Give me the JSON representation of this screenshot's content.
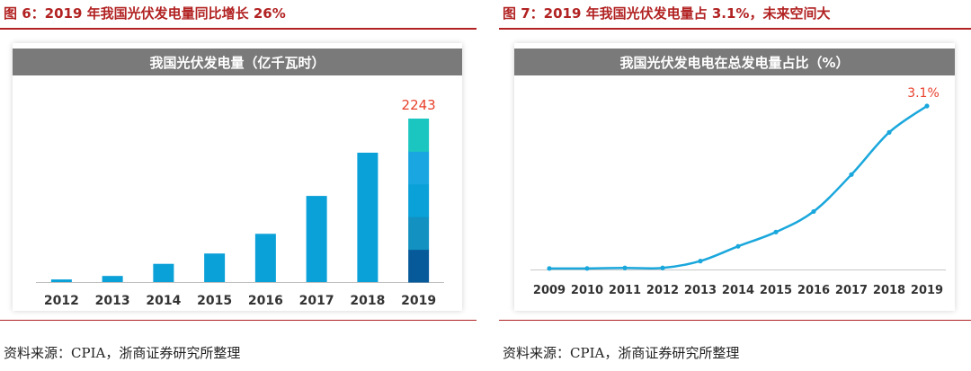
{
  "colors": {
    "title_red": "#b22222",
    "bar_blue": "#0aa0d8",
    "line_blue": "#1aa7dc",
    "header_gray": "#7a7a7a",
    "label_red": "#e8412c",
    "segment_colors": [
      "#075a9a",
      "#1391c1",
      "#0aa0d8",
      "#1aa6e0",
      "#1cc6c0"
    ]
  },
  "left": {
    "figure_title": "图 6：2019 年我国光伏发电量同比增长 26%",
    "source": "资料来源：CPIA，浙商证券研究所整理"
  },
  "right": {
    "figure_title": "图 7：2019 年我国光伏发电量占 3.1%，未来空间大",
    "source": "资料来源：CPIA，浙商证券研究所整理"
  },
  "chart_data": [
    {
      "type": "bar",
      "title": "我国光伏发电量（亿千瓦时）",
      "categories": [
        "2012",
        "2013",
        "2014",
        "2015",
        "2016",
        "2017",
        "2018",
        "2019"
      ],
      "values": [
        36,
        84,
        250,
        392,
        662,
        1182,
        1775,
        2243
      ],
      "data_labels": [
        "",
        "",
        "",
        "",
        "",
        "",
        "",
        "2243"
      ],
      "ylim": [
        0,
        2243
      ],
      "xlabel": "",
      "ylabel": "",
      "grid": false
    },
    {
      "type": "line",
      "title": "我国光伏发电电在总发电量占比（%）",
      "categories": [
        "2009",
        "2010",
        "2011",
        "2012",
        "2013",
        "2014",
        "2015",
        "2016",
        "2017",
        "2018",
        "2019"
      ],
      "values": [
        0.02,
        0.02,
        0.03,
        0.03,
        0.16,
        0.44,
        0.71,
        1.1,
        1.8,
        2.6,
        3.1
      ],
      "data_labels": [
        "",
        "",
        "",
        "",
        "",
        "",
        "",
        "",
        "",
        "",
        "3.1%"
      ],
      "ylim": [
        0,
        3.1
      ],
      "xlabel": "",
      "ylabel": "",
      "grid": false
    }
  ]
}
